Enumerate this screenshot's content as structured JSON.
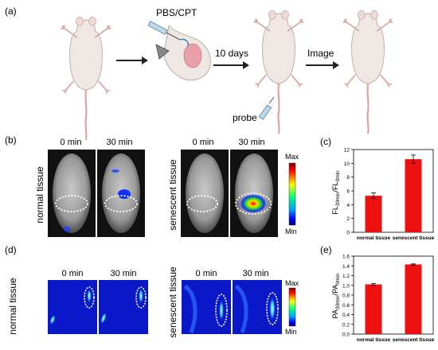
{
  "panels": {
    "a": {
      "label": "(a)",
      "treatment_label": "PBS/CPT",
      "time_label": "10 days",
      "image_label": "Image",
      "probe_label": "probe"
    },
    "b": {
      "label": "(b)",
      "time_0": "0 min",
      "time_30": "30 min",
      "group_normal": "normal tissue",
      "group_senescent": "senescent tissue",
      "colorbar_max": "Max",
      "colorbar_min": "Min"
    },
    "c": {
      "label": "(c)",
      "ylabel_main": "FL",
      "ylabel_sub1": "30min",
      "ylabel_sep": "/FL",
      "ylabel_sub2": "0min"
    },
    "d": {
      "label": "(d)",
      "time_0": "0 min",
      "time_30": "30 min",
      "group_normal": "normal tissue",
      "group_senescent": "senescent tissue",
      "colorbar_max": "Max",
      "colorbar_min": "Min"
    },
    "e": {
      "label": "(e)",
      "ylabel_main": "PA",
      "ylabel_sub1": "30min",
      "ylabel_sep": "/PA",
      "ylabel_sub2": "0min"
    }
  },
  "chart_data": [
    {
      "panel": "c",
      "type": "bar",
      "categories": [
        "normal tissue",
        "senescent tissue"
      ],
      "values": [
        5.3,
        10.6
      ],
      "errors": [
        0.4,
        0.6
      ],
      "ylim": [
        0,
        12
      ],
      "yticks": [
        0,
        2,
        4,
        6,
        8,
        10,
        12
      ],
      "bar_color": "#ee1111",
      "grid": false
    },
    {
      "panel": "e",
      "type": "bar",
      "categories": [
        "normal tissue",
        "senescent tissue"
      ],
      "values": [
        1.02,
        1.43
      ],
      "errors": [
        0.02,
        0.01
      ],
      "ylim": [
        0,
        1.6
      ],
      "yticks": [
        0.0,
        0.2,
        0.4,
        0.6,
        0.8,
        1.0,
        1.2,
        1.4,
        1.6
      ],
      "bar_color": "#ee1111",
      "grid": false
    }
  ],
  "colors": {
    "mouse_body": "#efe7e3",
    "mouse_outline": "#b9aca6",
    "mouse_tail": "#e39999",
    "pa_background": "#0a18c8",
    "bar": "#ee1111"
  }
}
